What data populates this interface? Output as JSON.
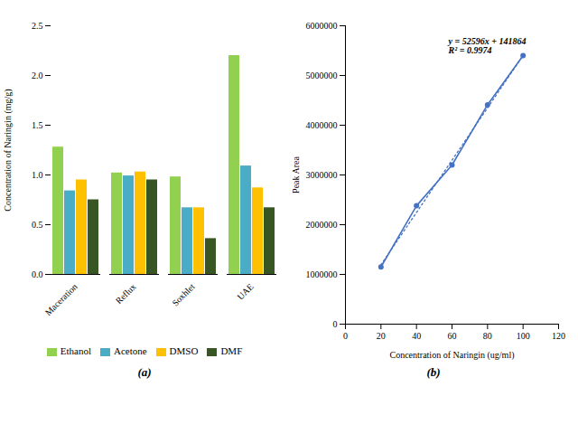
{
  "chart_data": [
    {
      "type": "bar",
      "caption": "(a)",
      "categories": [
        "Maceration",
        "Reflux",
        "Soxhlet",
        "UAE"
      ],
      "series": [
        {
          "name": "Ethanol",
          "color": "#92D050",
          "values": [
            1.28,
            1.02,
            0.98,
            2.2
          ]
        },
        {
          "name": "Acetone",
          "color": "#4BACC6",
          "values": [
            0.84,
            0.99,
            0.67,
            1.09
          ]
        },
        {
          "name": "DMSO",
          "color": "#FFC000",
          "values": [
            0.95,
            1.03,
            0.67,
            0.87
          ]
        },
        {
          "name": "DMF",
          "color": "#375623",
          "values": [
            0.75,
            0.95,
            0.36,
            0.67
          ]
        }
      ],
      "ylabel": "Concentration of Naringin (mg/g)",
      "ylim": [
        0,
        2.5
      ],
      "yticks": [
        {
          "value": 0,
          "label": "0.0"
        },
        0.5,
        {
          "value": 1.0,
          "label": "1.0"
        },
        1.5,
        {
          "value": 2.0,
          "label": "2.0"
        },
        2.5
      ],
      "grid": false,
      "legend": "bottom"
    },
    {
      "type": "line",
      "caption": "(b)",
      "xlabel": "Concentration of Naringin (ug/ml)",
      "ylabel": "Peak Area",
      "xlim": [
        0,
        120
      ],
      "xticks": [
        0,
        20,
        40,
        60,
        80,
        100,
        120
      ],
      "ylim": [
        0,
        6000000
      ],
      "yticks": [
        0,
        1000000,
        2000000,
        3000000,
        4000000,
        5000000,
        6000000
      ],
      "grid": false,
      "series": [
        {
          "color": "#4472C4",
          "line_style": "solid",
          "marker": "circle",
          "x": [
            20,
            40,
            60,
            80,
            100
          ],
          "values": [
            1150000,
            2380000,
            3200000,
            4410000,
            5400000
          ]
        },
        {
          "color": "#4472C4",
          "line_style": "dotted",
          "x": [
            20,
            100
          ],
          "values": [
            1193784,
            5401464
          ]
        }
      ],
      "annotations": [
        {
          "text": "y = 52596x + 141864\nR² = 0.9974",
          "x": 58,
          "y": 5750000
        }
      ]
    }
  ]
}
